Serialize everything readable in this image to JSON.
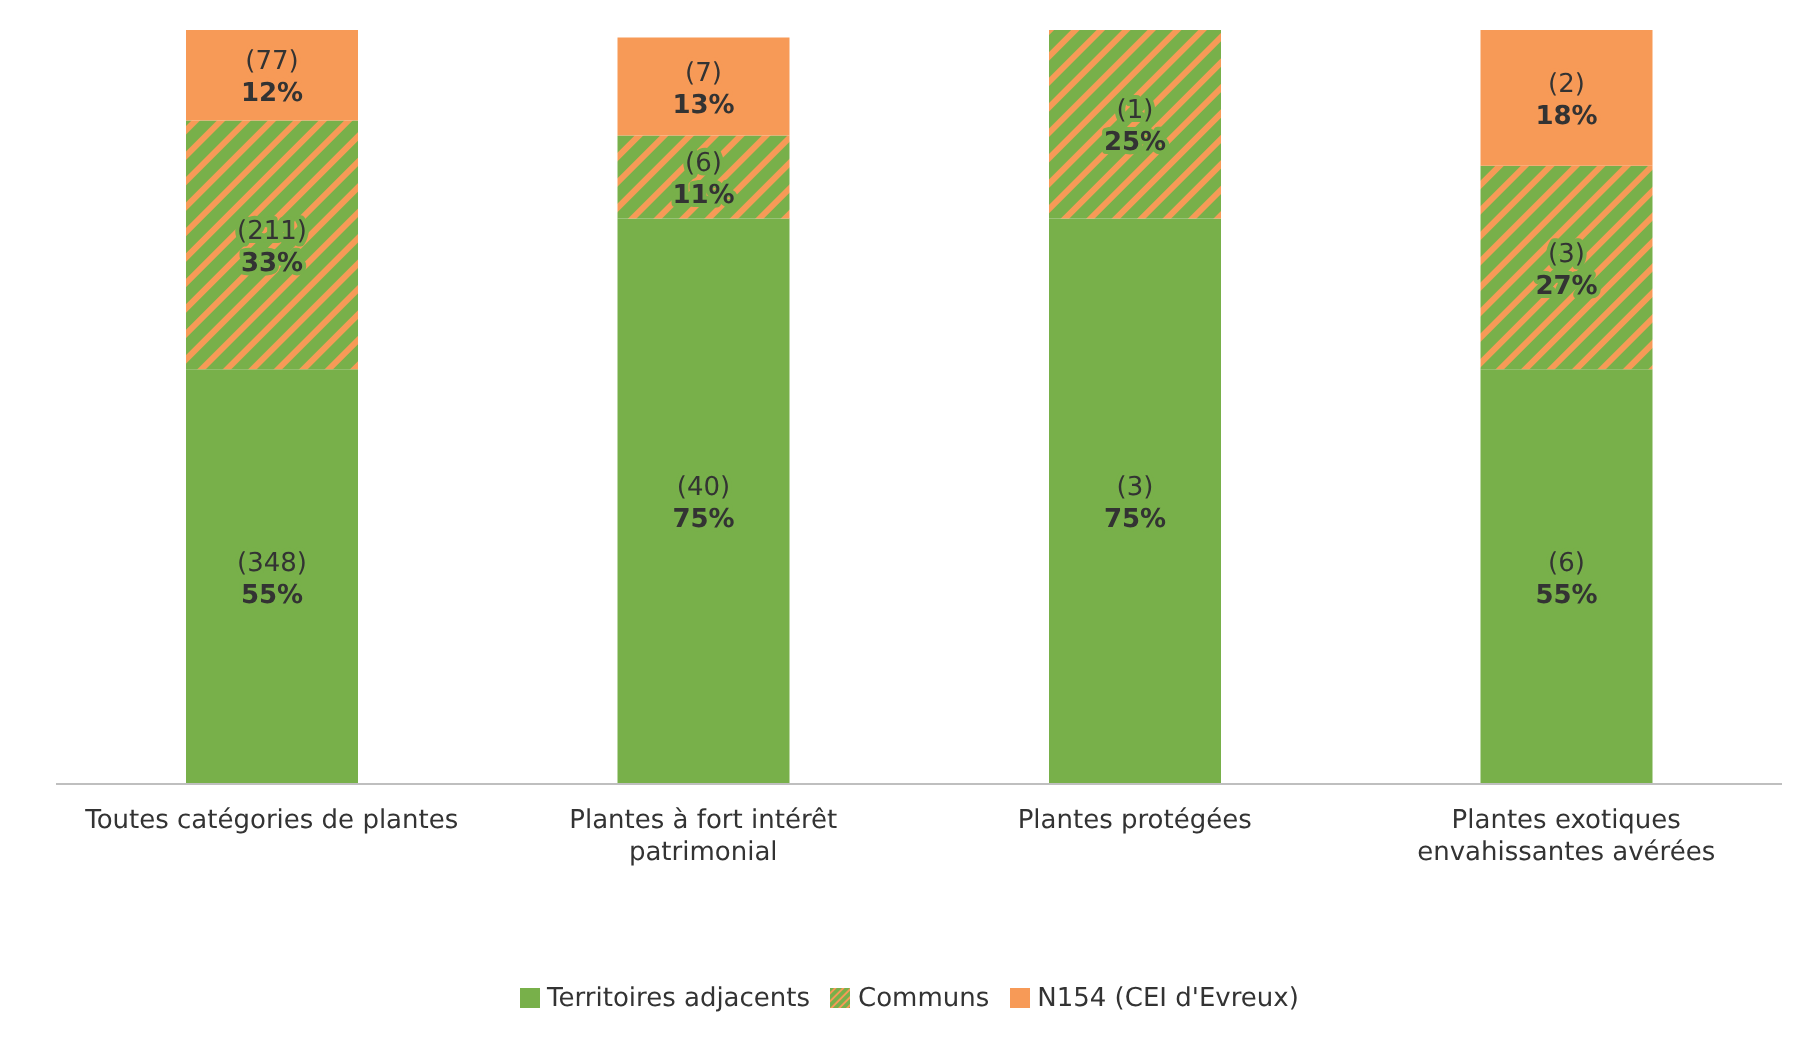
{
  "chart_data": {
    "type": "bar",
    "stacked": true,
    "categories": [
      "Toutes catégories de plantes",
      "Plantes à fort intérêt patrimonial",
      "Plantes protégées",
      "Plantes exotiques envahissantes avérées"
    ],
    "series": [
      {
        "name": "Territoires adjacents",
        "color": "#78b04a",
        "values": [
          55,
          75,
          75,
          55
        ],
        "value_labels": [
          "(348)\n55%",
          "(40)\n75%",
          "(3)\n75%",
          "(6)\n55%"
        ]
      },
      {
        "name": "Communs",
        "color": "#78b04a",
        "values": [
          33,
          11,
          25,
          27
        ],
        "value_labels": [
          "(211)\n33%",
          "(6)\n11%",
          "(1)\n25%",
          "(3)\n27%"
        ]
      },
      {
        "name": "N154 (CEI d'Evreux)",
        "color": "#f79a57",
        "values": [
          12,
          13,
          null,
          18
        ],
        "value_labels": [
          "(77)\n12%",
          "(7)\n13%",
          null,
          "(2)\n18%"
        ]
      }
    ],
    "legend": "bottom"
  }
}
